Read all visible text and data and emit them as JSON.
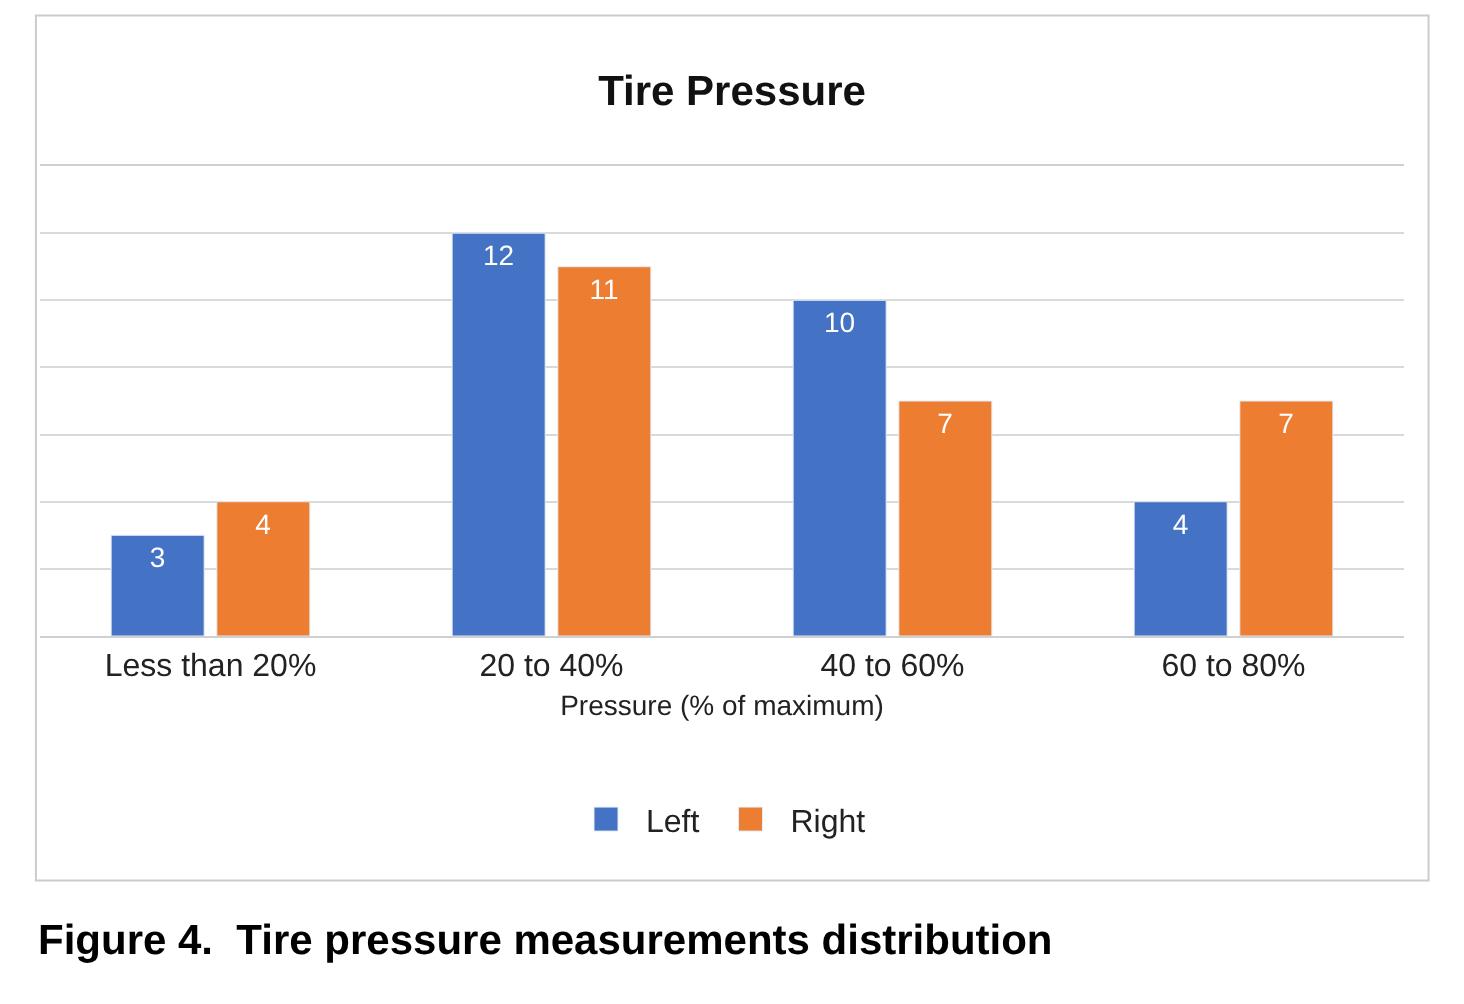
{
  "chart_data": {
    "type": "bar",
    "title": "Tire Pressure",
    "xlabel": "Pressure (% of maximum)",
    "categories": [
      "Less than 20%",
      "20 to 40%",
      "40 to 60%",
      "60 to 80%"
    ],
    "series": [
      {
        "name": "Left",
        "color": "#4472c4",
        "values": [
          3,
          12,
          10,
          4
        ]
      },
      {
        "name": "Right",
        "color": "#ed7d31",
        "values": [
          4,
          11,
          7,
          7
        ]
      }
    ],
    "ylim": [
      0,
      14
    ],
    "yticks": [
      {
        "value": 0,
        "label": null
      },
      {
        "value": 2,
        "label": null
      },
      {
        "value": 4,
        "label": null
      },
      {
        "value": 6,
        "label": null
      },
      {
        "value": 8,
        "label": null
      },
      {
        "value": 10,
        "label": null
      },
      {
        "value": 12,
        "label": null
      },
      {
        "value": 14,
        "label": null
      }
    ],
    "grid": "y",
    "legend": "bottom",
    "tick_labels": "x",
    "data_labels": true,
    "annotations": [
      "Figure 4.  Tire pressure measurements distribution"
    ]
  }
}
